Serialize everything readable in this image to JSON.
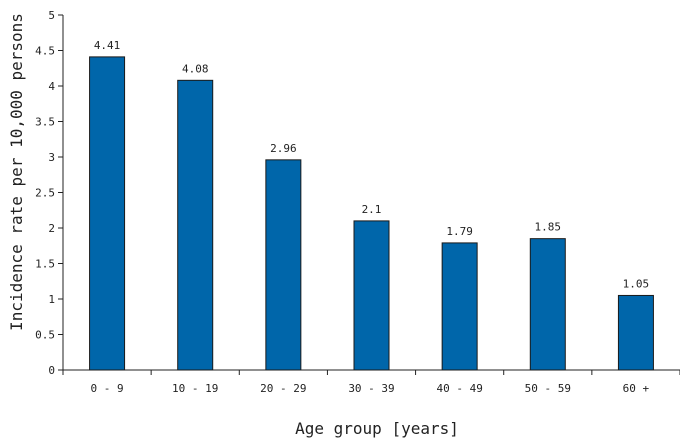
{
  "chart_data": {
    "type": "bar",
    "categories": [
      "0 - 9",
      "10 - 19",
      "20 - 29",
      "30 - 39",
      "40 - 49",
      "50 - 59",
      "60 +"
    ],
    "values": [
      4.41,
      4.08,
      2.96,
      2.1,
      1.79,
      1.85,
      1.05
    ],
    "data_labels": [
      "4.41",
      "4.08",
      "2.96",
      "2.1",
      "1.79",
      "1.85",
      "1.05"
    ],
    "title": "",
    "xlabel": "Age group [years]",
    "ylabel": "Incidence rate per 10,000 persons",
    "ylim": [
      0,
      5
    ],
    "yticks": [
      0,
      0.5,
      1,
      1.5,
      2,
      2.5,
      3,
      3.5,
      4,
      4.5,
      5
    ],
    "ytick_labels": [
      "0",
      "0.5",
      "1",
      "1.5",
      "2",
      "2.5",
      "3",
      "3.5",
      "4",
      "4.5",
      "5"
    ],
    "grid": false,
    "bar_color": "#0066aa"
  }
}
